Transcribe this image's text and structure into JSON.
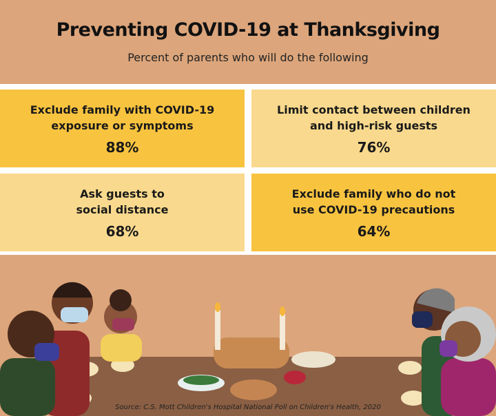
{
  "header": {
    "title": "Preventing COVID-19 at Thanksgiving",
    "subtitle": "Percent of parents who will  do the following"
  },
  "cards": [
    {
      "lines": [
        "Exclude family with COVID-19",
        "exposure or symptoms"
      ],
      "percent": "88%"
    },
    {
      "lines": [
        "Limit contact between children",
        "and high-risk guests"
      ],
      "percent": "76%"
    },
    {
      "lines": [
        "Ask guests to",
        "social distance"
      ],
      "percent": "68%"
    },
    {
      "lines": [
        "Exclude family who do not",
        "use COVID-19 precautions"
      ],
      "percent": "64%"
    }
  ],
  "source": "Source: C.S. Mott Children's Hospital National Poll on Children's Health, 2020"
}
